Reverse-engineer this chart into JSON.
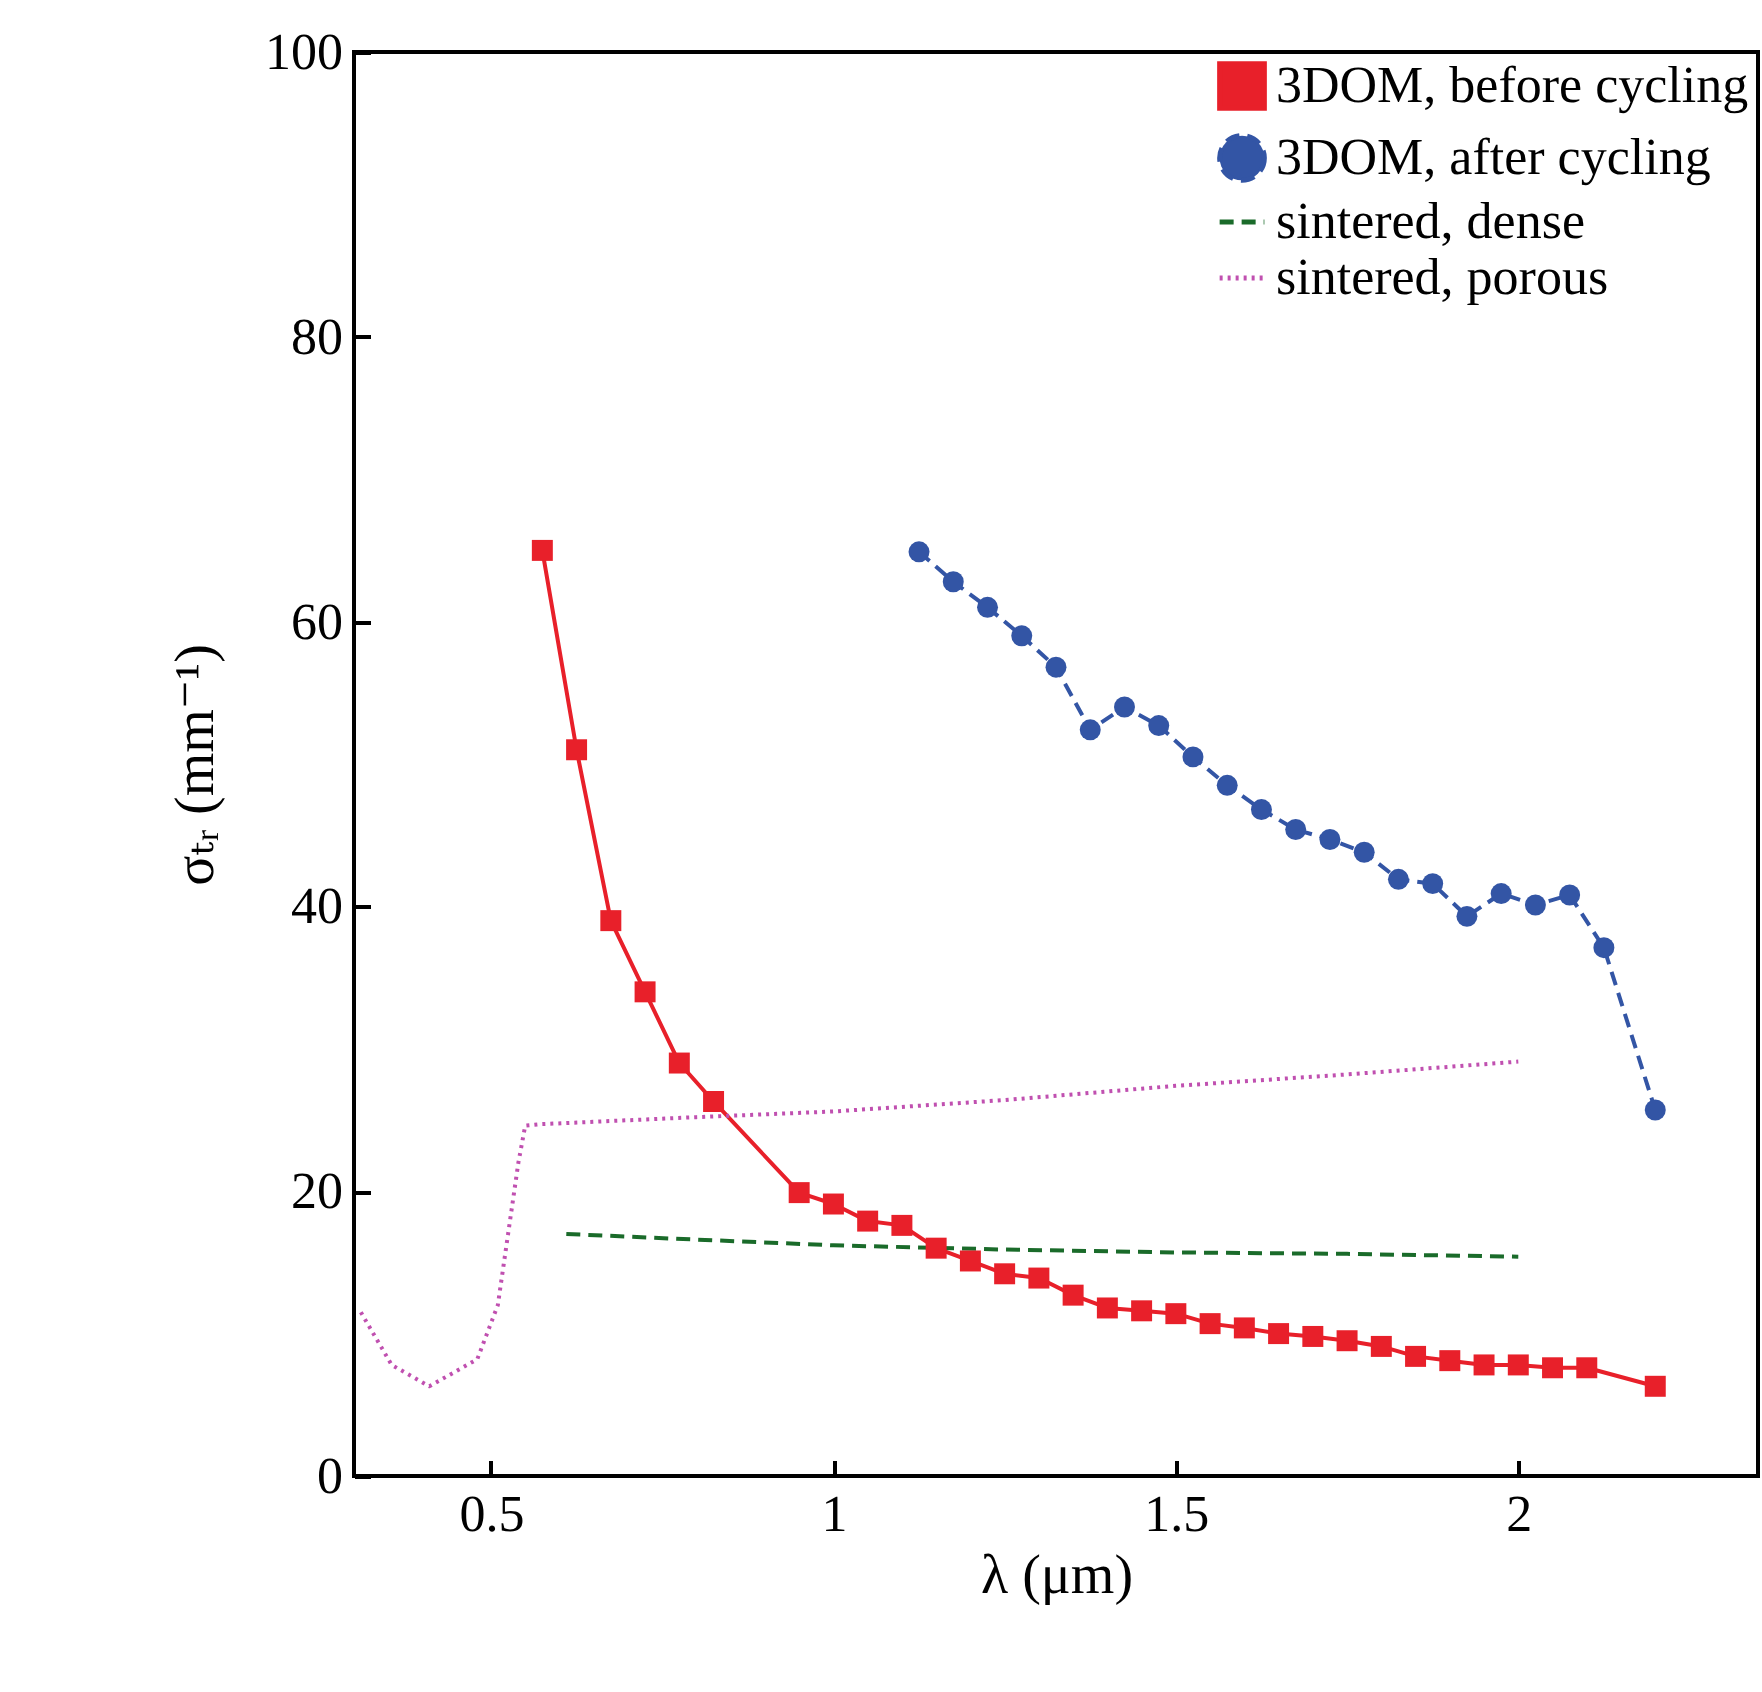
{
  "chart_data": {
    "type": "line",
    "xlabel": "λ (μm)",
    "ylabel": "σₜᵣ (mm⁻¹)",
    "xlim": [
      0.3,
      2.35
    ],
    "xticks": [
      0.5,
      1,
      1.5,
      2
    ],
    "ylim": [
      0,
      100
    ],
    "yticks": [
      0,
      20,
      40,
      60,
      80,
      100
    ],
    "grid": false,
    "legend": "top right",
    "series": [
      {
        "name": "3DOM, before cycling",
        "color": "#e8202a",
        "marker": "square",
        "line_style": "solid",
        "x": [
          0.575,
          0.625,
          0.675,
          0.725,
          0.775,
          0.825,
          0.95,
          1.0,
          1.05,
          1.1,
          1.15,
          1.2,
          1.25,
          1.3,
          1.35,
          1.4,
          1.45,
          1.5,
          1.55,
          1.6,
          1.65,
          1.7,
          1.75,
          1.8,
          1.85,
          1.9,
          1.95,
          2.0,
          2.05,
          2.1,
          2.2
        ],
        "values": [
          65,
          51,
          39,
          34,
          29,
          26.3,
          19.9,
          19.1,
          17.9,
          17.6,
          16.0,
          15.1,
          14.2,
          13.9,
          12.7,
          11.8,
          11.6,
          11.4,
          10.7,
          10.4,
          10.0,
          9.8,
          9.5,
          9.1,
          8.4,
          8.1,
          7.8,
          7.8,
          7.6,
          7.6,
          6.3
        ]
      },
      {
        "name": "3DOM, after cycling",
        "color": "#3355a5",
        "marker": "circle",
        "line_style": "dashed",
        "x": [
          1.125,
          1.175,
          1.225,
          1.275,
          1.325,
          1.375,
          1.425,
          1.475,
          1.525,
          1.575,
          1.625,
          1.675,
          1.725,
          1.775,
          1.825,
          1.875,
          1.925,
          1.975,
          2.025,
          2.075,
          2.125,
          2.2
        ],
        "values": [
          64.9,
          62.8,
          61.0,
          59.0,
          56.8,
          52.4,
          54.0,
          52.7,
          50.5,
          48.5,
          46.8,
          45.4,
          44.7,
          43.8,
          41.9,
          41.6,
          39.3,
          40.9,
          40.1,
          40.8,
          37.1,
          25.7
        ]
      },
      {
        "name": "sintered, dense",
        "color": "#1a6b2a",
        "marker": "none",
        "line_style": "dashed",
        "x": [
          0.61,
          0.8,
          1.0,
          1.25,
          1.5,
          1.75,
          2.0
        ],
        "values": [
          17.0,
          16.6,
          16.2,
          15.9,
          15.7,
          15.6,
          15.4
        ]
      },
      {
        "name": "sintered, porous",
        "color": "#c050b0",
        "marker": "none",
        "line_style": "dotted",
        "x": [
          0.31,
          0.355,
          0.41,
          0.48,
          0.51,
          0.525,
          0.54,
          0.55,
          0.57,
          0.8,
          1.0,
          1.25,
          1.5,
          1.75,
          2.0
        ],
        "values": [
          11.5,
          7.8,
          6.3,
          8.2,
          12.0,
          17.0,
          22.0,
          24.6,
          24.7,
          25.2,
          25.6,
          26.4,
          27.4,
          28.2,
          29.1
        ]
      }
    ]
  }
}
